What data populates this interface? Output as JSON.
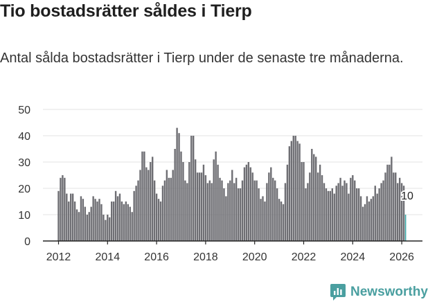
{
  "title": "Tio bostadsrätter såldes i Tierp",
  "subtitle": "Antal sålda bostadsrätter i Tierp under de senaste tre månaderna.",
  "brand": "Newsworthy",
  "colors": {
    "bar": "#6e6e73",
    "highlight": "#3aa8a6",
    "grid": "#e3e3e3",
    "axis": "#222222",
    "brand": "#4a9fa0"
  },
  "chart_data": {
    "type": "bar",
    "title": "Tio bostadsrätter såldes i Tierp",
    "ylabel": "",
    "xlabel": "",
    "ylim": [
      0,
      50
    ],
    "yticks": [
      "0",
      "10",
      "20",
      "30",
      "40",
      "50"
    ],
    "xticks": [
      "2012",
      "2014",
      "2016",
      "2018",
      "2020",
      "2022",
      "2024",
      "2026"
    ],
    "start": "2012-01",
    "unit": "monthly, rolling three months",
    "values": [
      19,
      24,
      25,
      24,
      18,
      15,
      18,
      18,
      15,
      12,
      11,
      17,
      16,
      13,
      10,
      11,
      13,
      17,
      16,
      15,
      16,
      14,
      10,
      8,
      10,
      9,
      15,
      15,
      19,
      17,
      18,
      15,
      14,
      15,
      14,
      13,
      11,
      19,
      21,
      23,
      27,
      34,
      34,
      28,
      27,
      30,
      32,
      23,
      18,
      16,
      15,
      21,
      23,
      27,
      24,
      24,
      27,
      35,
      43,
      41,
      34,
      30,
      23,
      22,
      30,
      40,
      40,
      31,
      26,
      26,
      26,
      29,
      25,
      22,
      23,
      22,
      31,
      34,
      29,
      24,
      23,
      20,
      17,
      22,
      23,
      27,
      22,
      24,
      20,
      20,
      23,
      28,
      29,
      30,
      28,
      26,
      23,
      23,
      20,
      16,
      17,
      15,
      22,
      26,
      28,
      24,
      23,
      20,
      16,
      15,
      14,
      22,
      29,
      36,
      38,
      40,
      40,
      38,
      37,
      30,
      30,
      20,
      22,
      26,
      35,
      33,
      32,
      26,
      29,
      25,
      22,
      20,
      19,
      19,
      20,
      18,
      21,
      22,
      24,
      21,
      23,
      22,
      18,
      24,
      25,
      23,
      20,
      20,
      17,
      13,
      14,
      17,
      15,
      16,
      17,
      21,
      18,
      20,
      22,
      23,
      26,
      29,
      29,
      32,
      26,
      26,
      22,
      24,
      22,
      21,
      10
    ],
    "annotation": {
      "label": "10",
      "value": 10
    }
  }
}
